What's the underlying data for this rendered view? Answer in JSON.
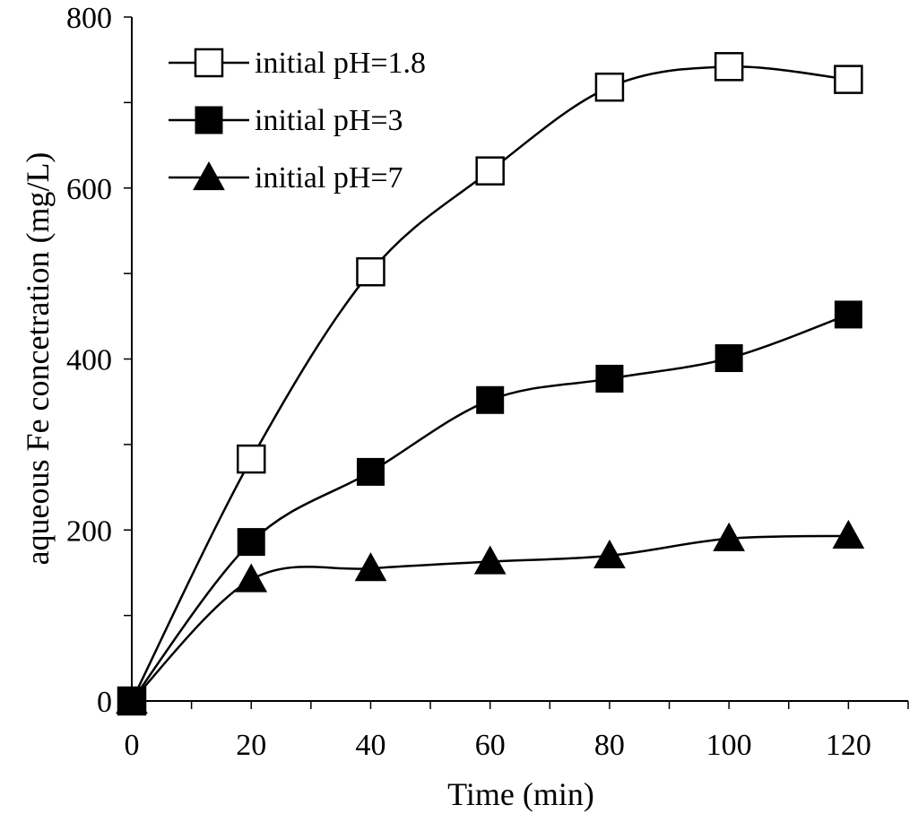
{
  "chart_data": {
    "type": "line",
    "title": "",
    "xlabel": "Time (min)",
    "ylabel": "aqueous Fe concetration (mg/L)",
    "x": [
      0,
      20,
      40,
      60,
      80,
      100,
      120
    ],
    "xlim": [
      0,
      130
    ],
    "ylim": [
      0,
      800
    ],
    "xticks": [
      0,
      20,
      40,
      60,
      80,
      100,
      120
    ],
    "yticks": [
      0,
      200,
      400,
      600,
      800
    ],
    "xticks_minor_step": 10,
    "yticks_minor_step": 100,
    "grid": false,
    "legend_position": "top-left",
    "series": [
      {
        "name": "initial pH=1.8",
        "marker": "open-square",
        "color": "#000000",
        "values": [
          0,
          283,
          502,
          620,
          718,
          742,
          727
        ]
      },
      {
        "name": "initial pH=3",
        "marker": "filled-square",
        "color": "#000000",
        "values": [
          0,
          186,
          268,
          352,
          377,
          401,
          452
        ]
      },
      {
        "name": "initial pH=7",
        "marker": "filled-triangle",
        "color": "#000000",
        "values": [
          0,
          142,
          155,
          163,
          170,
          190,
          193
        ]
      }
    ]
  }
}
